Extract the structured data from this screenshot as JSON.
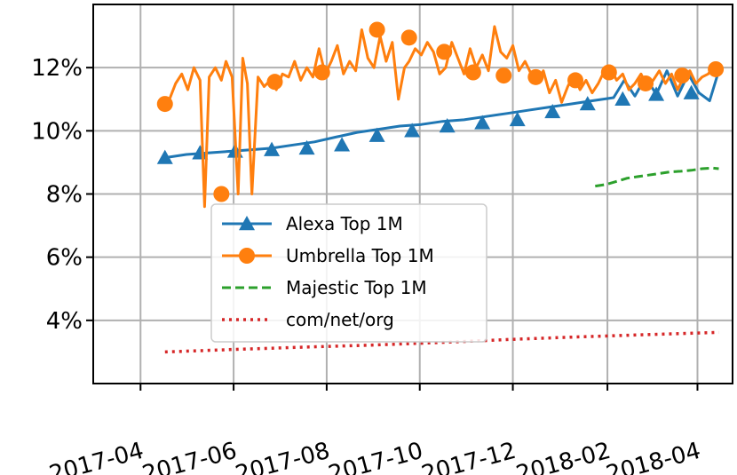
{
  "chart_data": {
    "type": "line",
    "title": "",
    "xlabel": "",
    "ylabel": "",
    "xlim": [
      "2017-03-01",
      "2018-04-24"
    ],
    "ylim": [
      2.0,
      14.0
    ],
    "grid": true,
    "legend_position": "center",
    "y_ticks": [
      4,
      6,
      8,
      10,
      12
    ],
    "y_tick_labels": [
      "4%",
      "6%",
      "8%",
      "10%",
      "12%"
    ],
    "x_ticks": [
      "2017-04-01",
      "2017-06-01",
      "2017-08-01",
      "2017-10-01",
      "2017-12-01",
      "2018-02-01",
      "2018-04-01"
    ],
    "x_tick_labels": [
      "2017-04",
      "2017-06",
      "2017-08",
      "2017-10",
      "2017-12",
      "2018-02",
      "2018-04"
    ],
    "series": [
      {
        "name": "Alexa Top 1M",
        "color": "#1f77b4",
        "style": "solid",
        "marker": "triangle",
        "dates": [
          "2017-04-17",
          "2017-05-01",
          "2017-05-15",
          "2017-05-29",
          "2017-06-12",
          "2017-06-26",
          "2017-07-10",
          "2017-07-24",
          "2017-08-07",
          "2017-08-21",
          "2017-09-04",
          "2017-09-18",
          "2017-10-02",
          "2017-10-16",
          "2017-10-30",
          "2017-11-13",
          "2017-11-27",
          "2017-12-11",
          "2017-12-25",
          "2018-01-08",
          "2018-01-22",
          "2018-02-05",
          "2018-02-12",
          "2018-02-19",
          "2018-02-26",
          "2018-03-05",
          "2018-03-12",
          "2018-03-19",
          "2018-03-26",
          "2018-04-02",
          "2018-04-09",
          "2018-04-15"
        ],
        "values": [
          9.15,
          9.25,
          9.3,
          9.35,
          9.4,
          9.45,
          9.55,
          9.65,
          9.8,
          9.95,
          10.05,
          10.15,
          10.2,
          10.3,
          10.35,
          10.45,
          10.55,
          10.65,
          10.75,
          10.85,
          10.95,
          11.05,
          11.6,
          11.1,
          11.7,
          11.15,
          11.9,
          11.1,
          11.8,
          11.2,
          10.95,
          11.9
        ],
        "marker_dates": [
          "2017-04-17",
          "2017-05-10",
          "2017-06-02",
          "2017-06-26",
          "2017-07-19",
          "2017-08-11",
          "2017-09-03",
          "2017-09-26",
          "2017-10-19",
          "2017-11-11",
          "2017-12-04",
          "2017-12-27",
          "2018-01-19",
          "2018-02-11",
          "2018-03-05",
          "2018-03-28"
        ],
        "marker_values": [
          9.15,
          9.3,
          9.35,
          9.4,
          9.45,
          9.55,
          9.85,
          10.0,
          10.15,
          10.25,
          10.35,
          10.6,
          10.85,
          11.0,
          11.15,
          11.2
        ]
      },
      {
        "name": "Umbrella Top 1M",
        "color": "#ff7f0e",
        "style": "solid",
        "marker": "circle",
        "dates": [
          "2017-04-17",
          "2017-04-20",
          "2017-04-24",
          "2017-04-28",
          "2017-05-02",
          "2017-05-06",
          "2017-05-10",
          "2017-05-13",
          "2017-05-16",
          "2017-05-20",
          "2017-05-24",
          "2017-05-27",
          "2017-05-31",
          "2017-06-04",
          "2017-06-07",
          "2017-06-10",
          "2017-06-13",
          "2017-06-17",
          "2017-06-21",
          "2017-06-25",
          "2017-06-29",
          "2017-07-03",
          "2017-07-07",
          "2017-07-11",
          "2017-07-15",
          "2017-07-19",
          "2017-07-23",
          "2017-07-27",
          "2017-07-31",
          "2017-08-04",
          "2017-08-08",
          "2017-08-12",
          "2017-08-16",
          "2017-08-20",
          "2017-08-24",
          "2017-08-28",
          "2017-09-01",
          "2017-09-05",
          "2017-09-09",
          "2017-09-13",
          "2017-09-17",
          "2017-09-21",
          "2017-09-24",
          "2017-09-28",
          "2017-10-02",
          "2017-10-06",
          "2017-10-10",
          "2017-10-14",
          "2017-10-18",
          "2017-10-22",
          "2017-10-26",
          "2017-10-30",
          "2017-11-03",
          "2017-11-07",
          "2017-11-11",
          "2017-11-15",
          "2017-11-19",
          "2017-11-23",
          "2017-11-27",
          "2017-12-01",
          "2017-12-05",
          "2017-12-09",
          "2017-12-13",
          "2017-12-17",
          "2017-12-21",
          "2017-12-25",
          "2017-12-29",
          "2018-01-02",
          "2018-01-06",
          "2018-01-10",
          "2018-01-14",
          "2018-01-18",
          "2018-01-22",
          "2018-01-26",
          "2018-01-30",
          "2018-02-03",
          "2018-02-07",
          "2018-02-11",
          "2018-02-15",
          "2018-02-19",
          "2018-02-23",
          "2018-02-27",
          "2018-03-03",
          "2018-03-07",
          "2018-03-11",
          "2018-03-15",
          "2018-03-19",
          "2018-03-23",
          "2018-03-27",
          "2018-03-31",
          "2018-04-04",
          "2018-04-08",
          "2018-04-13"
        ],
        "values": [
          10.85,
          11.0,
          11.5,
          11.8,
          11.3,
          12.0,
          11.6,
          7.6,
          11.7,
          12.0,
          11.6,
          12.2,
          11.7,
          8.0,
          12.3,
          11.5,
          8.0,
          11.7,
          11.4,
          11.6,
          11.3,
          11.8,
          11.7,
          12.2,
          11.6,
          12.0,
          11.7,
          12.6,
          11.8,
          12.2,
          12.7,
          11.8,
          12.2,
          11.9,
          13.2,
          12.3,
          12.0,
          13.0,
          12.2,
          12.8,
          11.0,
          12.0,
          12.2,
          12.6,
          12.4,
          12.8,
          12.5,
          11.8,
          12.0,
          12.8,
          12.3,
          11.8,
          12.6,
          12.0,
          12.4,
          11.9,
          13.3,
          12.5,
          12.3,
          12.7,
          11.9,
          12.2,
          11.8,
          11.5,
          11.9,
          11.2,
          11.6,
          10.9,
          11.4,
          11.8,
          11.3,
          11.6,
          11.2,
          11.5,
          11.9,
          12.0,
          11.6,
          11.8,
          11.3,
          11.5,
          11.8,
          11.4,
          11.6,
          11.9,
          11.5,
          11.8,
          11.3,
          11.7,
          11.9,
          11.5,
          11.7,
          11.8,
          12.1
        ],
        "marker_dates": [
          "2017-04-17",
          "2017-05-24",
          "2017-06-28",
          "2017-07-29",
          "2017-09-03",
          "2017-09-24",
          "2017-10-17",
          "2017-11-05",
          "2017-11-25",
          "2017-12-16",
          "2018-01-11",
          "2018-02-02",
          "2018-02-26",
          "2018-03-22",
          "2018-04-13"
        ],
        "marker_values": [
          10.85,
          8.0,
          11.55,
          11.85,
          13.2,
          12.95,
          12.5,
          11.85,
          11.75,
          11.7,
          11.6,
          11.85,
          11.5,
          11.75,
          11.95
        ]
      },
      {
        "name": "Majestic Top 1M",
        "color": "#2ca02c",
        "style": "dashed",
        "dates": [
          "2018-01-24",
          "2018-01-31",
          "2018-02-07",
          "2018-02-14",
          "2018-02-21",
          "2018-02-28",
          "2018-03-07",
          "2018-03-14",
          "2018-03-21",
          "2018-03-28",
          "2018-04-04",
          "2018-04-11",
          "2018-04-15"
        ],
        "values": [
          8.25,
          8.3,
          8.4,
          8.5,
          8.55,
          8.6,
          8.65,
          8.7,
          8.72,
          8.75,
          8.8,
          8.82,
          8.8
        ]
      },
      {
        "name": "com/net/org",
        "color": "#d62728",
        "style": "dotted",
        "dates": [
          "2017-04-17",
          "2017-06-01",
          "2017-07-15",
          "2017-09-01",
          "2017-10-15",
          "2017-12-01",
          "2018-01-15",
          "2018-03-01",
          "2018-04-15"
        ],
        "values": [
          3.0,
          3.08,
          3.15,
          3.22,
          3.3,
          3.4,
          3.48,
          3.55,
          3.62
        ]
      }
    ]
  }
}
